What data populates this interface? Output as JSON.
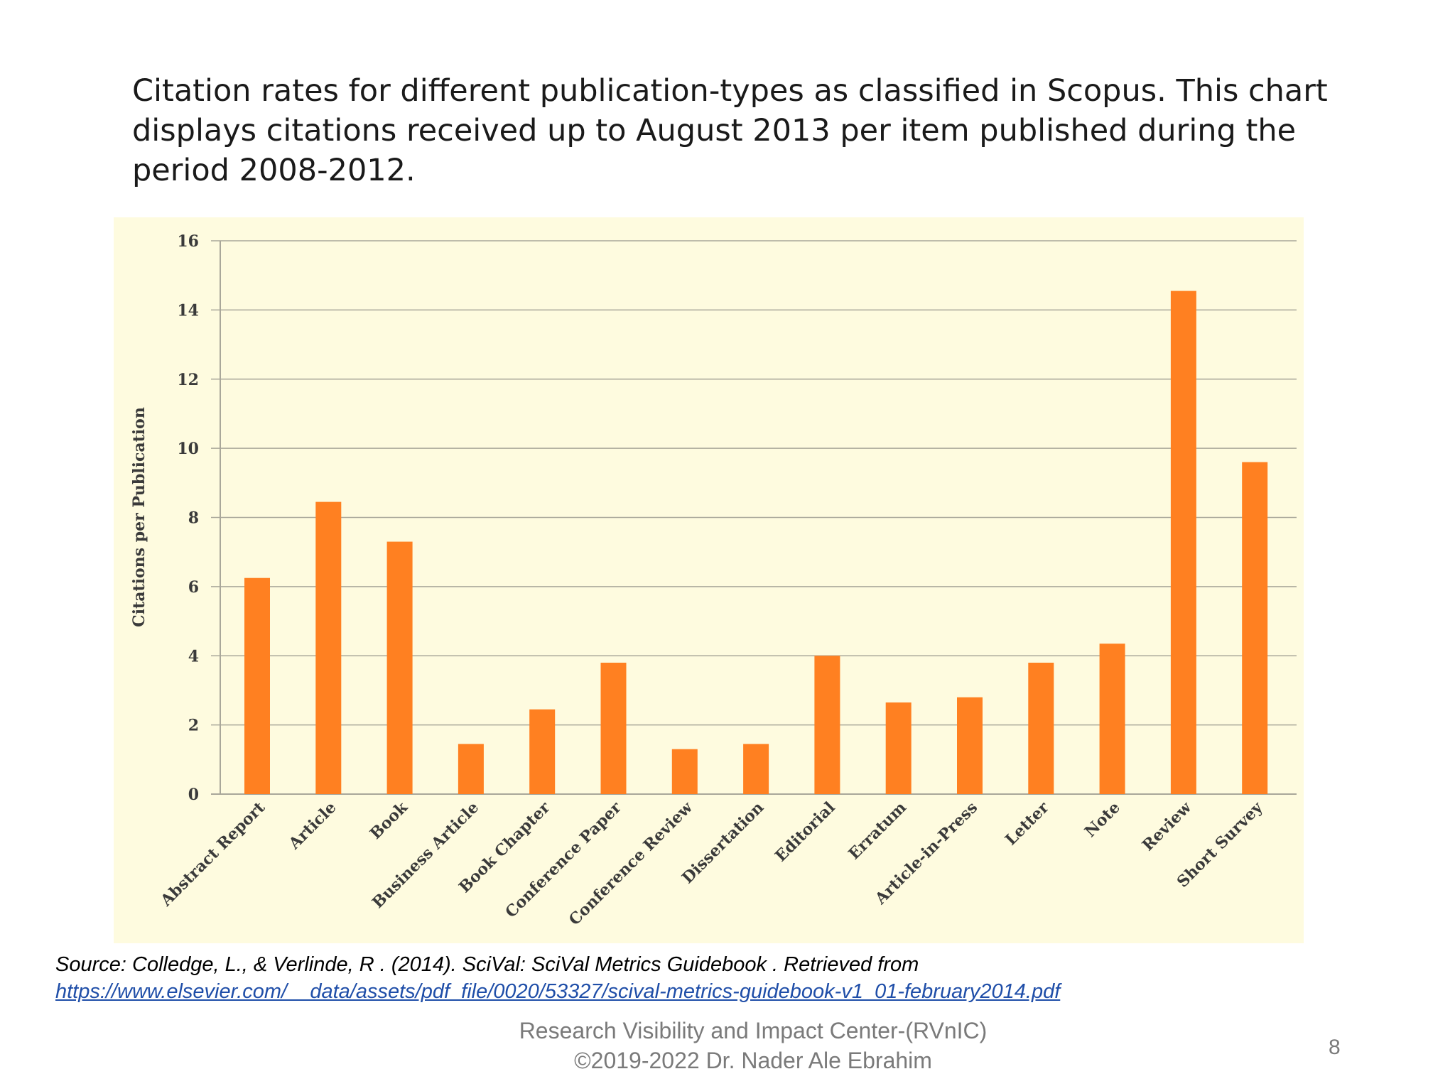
{
  "slide": {
    "title": "Citation rates for different publication-types as classified in Scopus. This chart displays citations received up to August 2013 per item published during the period 2008-2012.",
    "source_text": "Source: Colledge, L., & Verlinde, R . (2014). SciVal: SciVal Metrics Guidebook . Retrieved from",
    "source_url": "https://www.elsevier.com/__data/assets/pdf_file/0020/53327/scival-metrics-guidebook-v1_01-february2014.pdf",
    "footer_line1": "Research Visibility and Impact Center-(RVnIC)",
    "footer_line2": "©2019-2022 Dr. Nader Ale Ebrahim",
    "page_number": "8"
  },
  "chart_data": {
    "type": "bar",
    "title": "",
    "xlabel": "",
    "ylabel": "Citations per Publication",
    "ylim": [
      0,
      16
    ],
    "yticks": [
      0,
      2,
      4,
      6,
      8,
      10,
      12,
      14,
      16
    ],
    "grid": true,
    "categories": [
      "Abstract Report",
      "Article",
      "Book",
      "Business Article",
      "Book Chapter",
      "Conference Paper",
      "Conference Review",
      "Dissertation",
      "Editorial",
      "Erratum",
      "Article-in-Press",
      "Letter",
      "Note",
      "Review",
      "Short Survey"
    ],
    "values": [
      6.25,
      8.45,
      7.3,
      1.45,
      2.45,
      3.8,
      1.3,
      1.45,
      4.0,
      2.65,
      2.8,
      3.8,
      4.35,
      14.55,
      9.6
    ],
    "colors": {
      "bar": "#ff8021",
      "background": "#fefbdf",
      "grid": "#a9a79a",
      "text": "#3a3a3a"
    }
  }
}
